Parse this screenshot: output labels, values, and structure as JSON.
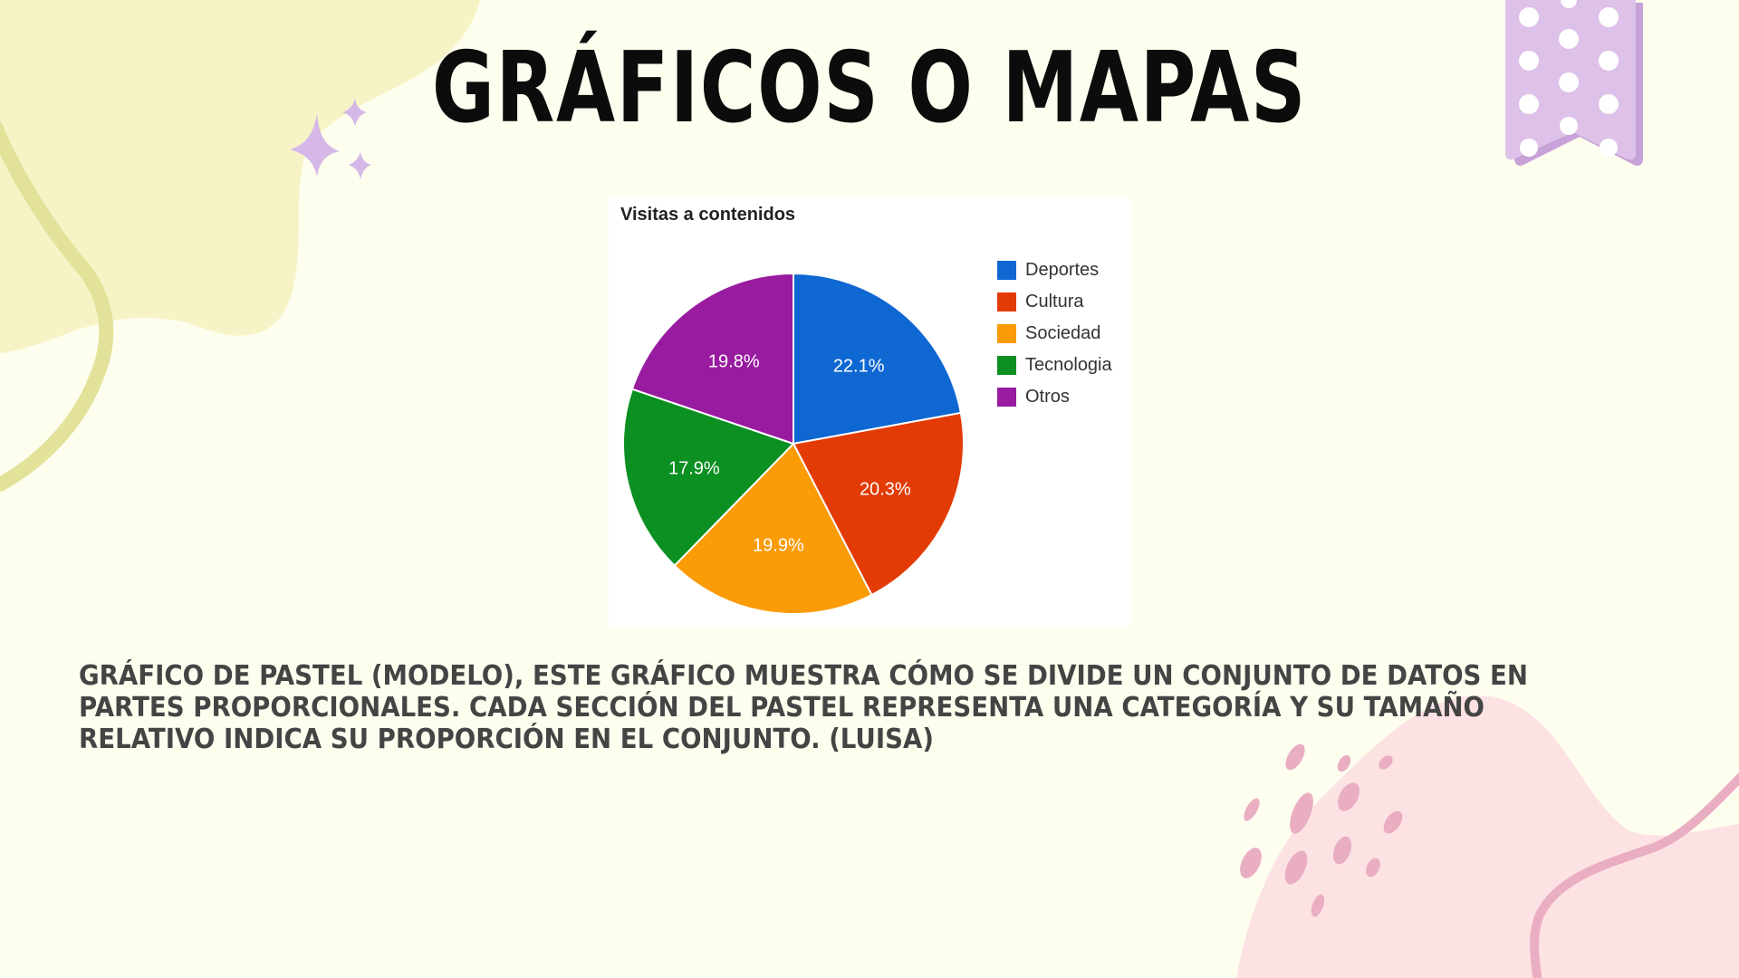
{
  "slide": {
    "title": "GRÁFICOS O MAPAS",
    "description": "GRÁFICO DE PASTEL (MODELO), ESTE GRÁFICO MUESTRA CÓMO SE DIVIDE UN CONJUNTO DE DATOS EN PARTES PROPORCIONALES. CADA SECCIÓN DEL PASTEL REPRESENTA UNA CATEGORÍA Y SU TAMAÑO RELATIVO INDICA SU PROPORCIÓN EN EL CONJUNTO. (LUISA)",
    "background_color": "#fefeef",
    "decor_colors": {
      "yellow_blob": "#f6f4c6",
      "yellow_line": "#e3e29a",
      "sparkle": "#d6b8e8",
      "ribbon": "#ddc1e8",
      "ribbon_shadow": "#c7a2d8",
      "pink_blob": "#fde2e4",
      "pink_accent": "#e9aec2"
    }
  },
  "chart_data": {
    "type": "pie",
    "title": "Visitas a contenidos",
    "categories": [
      "Deportes",
      "Cultura",
      "Sociedad",
      "Tecnologia",
      "Otros"
    ],
    "values": [
      22.1,
      20.3,
      19.9,
      17.9,
      19.8
    ],
    "labels": [
      "22.1%",
      "20.3%",
      "19.9%",
      "17.9%",
      "19.8%"
    ],
    "colors": [
      "#0f67d2",
      "#e33b05",
      "#fb9b05",
      "#0b9021",
      "#981ba0"
    ],
    "legend_position": "right",
    "start_angle": "12 o'clock, clockwise",
    "xlabel": "",
    "ylabel": ""
  }
}
